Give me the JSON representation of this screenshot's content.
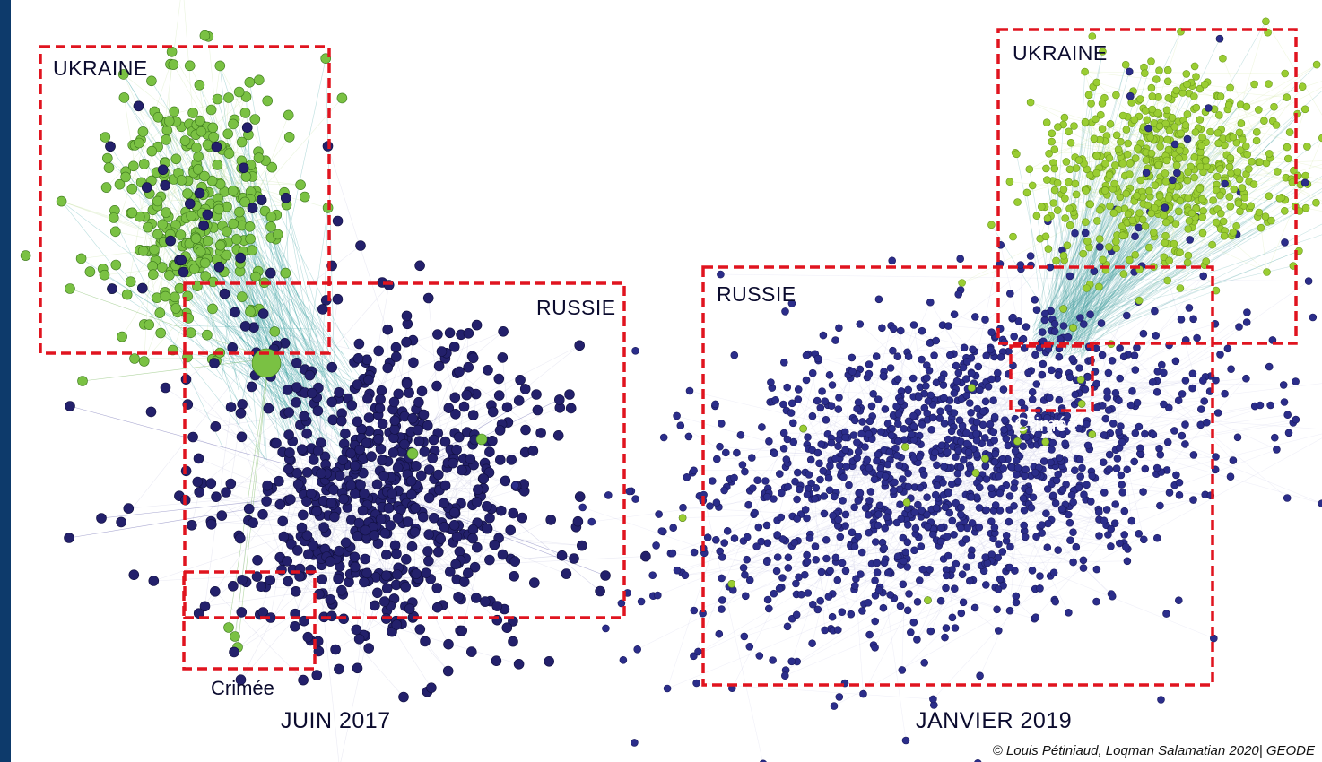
{
  "panels": [
    {
      "id": "june2017",
      "caption": "JUIN 2017",
      "labels": {
        "ukraine": "UKRAINE",
        "russia": "RUSSIE",
        "crimea": "Crimée"
      }
    },
    {
      "id": "jan2019",
      "caption": "JANVIER 2019",
      "labels": {
        "ukraine": "UKRAINE",
        "russia": "RUSSIE",
        "crimea": "Crimée"
      }
    }
  ],
  "credit": "© Louis Pétiniaud, Loqman Salamatian 2020| GEODE",
  "colors": {
    "ukraine_node": "#7ac143",
    "ukraine_node_2019": "#9acd32",
    "russia_node": "#23206b",
    "russia_node_2019": "#2b2d8a",
    "box_stroke": "#e0141f",
    "background_frame": "#0d3a6b"
  }
}
